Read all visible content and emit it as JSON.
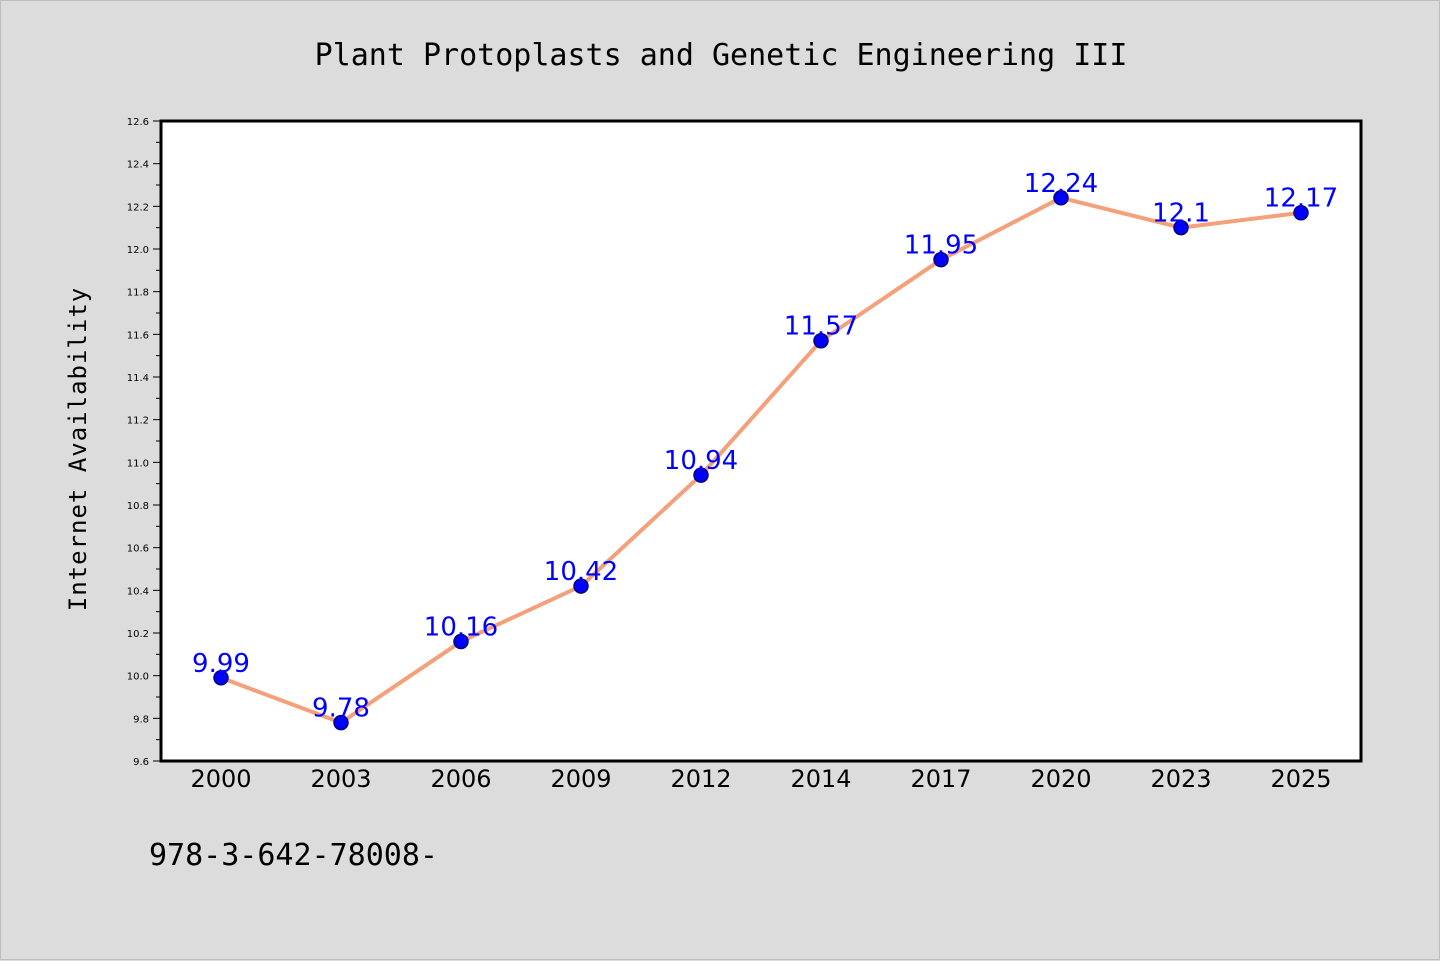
{
  "chart_data": {
    "type": "line",
    "title": "Plant Protoplasts and Genetic Engineering III",
    "ylabel": "Internet Availability",
    "xlabel": "",
    "categories": [
      "2000",
      "2003",
      "2006",
      "2009",
      "2012",
      "2014",
      "2017",
      "2020",
      "2023",
      "2025"
    ],
    "values": [
      9.99,
      9.78,
      10.16,
      10.42,
      10.94,
      11.57,
      11.95,
      12.24,
      12.1,
      12.17
    ],
    "data_labels": [
      "9.99",
      "9.78",
      "10.16",
      "10.42",
      "10.94",
      "11.57",
      "11.95",
      "12.24",
      "12.1",
      "12.17"
    ],
    "ylim": [
      9.6,
      12.6
    ],
    "yticks": [
      "9.6",
      "9.8",
      "10.0",
      "10.2",
      "10.4",
      "10.6",
      "10.8",
      "11.0",
      "11.2",
      "11.4",
      "11.6",
      "11.8",
      "12.0",
      "12.2",
      "12.4",
      "12.6"
    ],
    "grid": false,
    "legend": "none",
    "colors": {
      "line": "#f4a07a",
      "marker": "#0000ff",
      "marker_edge": "#000080",
      "data_label": "#0000ff",
      "plot_background": "#ffffff",
      "page_background": "#dcdcdc"
    }
  },
  "footer_text": "978-3-642-78008-"
}
